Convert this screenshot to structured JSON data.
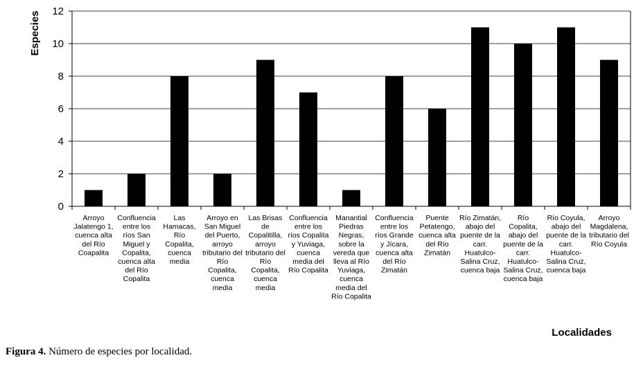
{
  "chart_data": {
    "type": "bar",
    "ylabel": "Especies",
    "xlabel": "Localidades",
    "ylim": [
      0,
      12
    ],
    "yticks": [
      0,
      2,
      4,
      6,
      8,
      10,
      12
    ],
    "grid": true,
    "bar_color": "#000000",
    "grid_color": "#000000",
    "categories": [
      [
        "Arroyo",
        "Jalatengo 1,",
        "cuenca alta",
        "del Río",
        "Coapalita"
      ],
      [
        "Confluencia",
        "entre los",
        "ríos San",
        "Miguel y",
        "Copalita,",
        "cuenca alta",
        "del Río",
        "Copalita"
      ],
      [
        "Las",
        "Hamacas,",
        "Río",
        "Copalita,",
        "cuenca",
        "media"
      ],
      [
        "Arroyo en",
        "San Miguel",
        "del Puerto,",
        "arroyo",
        "tributario del",
        "Río",
        "Copalita,",
        "cuenca",
        "media"
      ],
      [
        "Las Brisas",
        "de",
        "Copalitilla,",
        "arroyo",
        "tributario del",
        "Río",
        "Copalita,",
        "cuenca",
        "media"
      ],
      [
        "Confluencia",
        "entre los",
        "ríos Copalita",
        "y Yuviaga,",
        "cuenca",
        "media del",
        "Río Copalita"
      ],
      [
        "Manantial",
        "Piedras",
        "Negras,",
        "sobre la",
        "vereda que",
        "lleva al Río",
        "Yuviaga,",
        "cuenca",
        "media del",
        "Río Copalita"
      ],
      [
        "Confluencia",
        "entre los",
        "ríos Grande",
        "y Jícara,",
        "cuenca alta",
        "del Río",
        "Zimatán"
      ],
      [
        "Puente",
        "Petatengo,",
        "cuenca alta",
        "del Río",
        "Zimatán"
      ],
      [
        "Río Zimatán,",
        "abajo del",
        "puente de la",
        "carr.",
        "Huatulco-",
        "Salina Cruz,",
        "cuenca baja"
      ],
      [
        "Río",
        "Copalita,",
        "abajo del",
        "puente de la",
        "carr.",
        "Huatulco-",
        "Salina Cruz,",
        "cuenca baja"
      ],
      [
        "Río Coyula,",
        "abajo del",
        "puente de la",
        "carr.",
        "Huatulco-",
        "Salina Cruz,",
        "cuenca baja"
      ],
      [
        "Arroyo",
        "Magdalena,",
        "tributario del",
        "Río Coyula"
      ]
    ],
    "values": [
      1,
      2,
      8,
      2,
      9,
      7,
      1,
      8,
      6,
      11,
      10,
      11,
      9
    ]
  },
  "caption": {
    "label": "Figura 4.",
    "text": " Número de especies por localidad."
  }
}
